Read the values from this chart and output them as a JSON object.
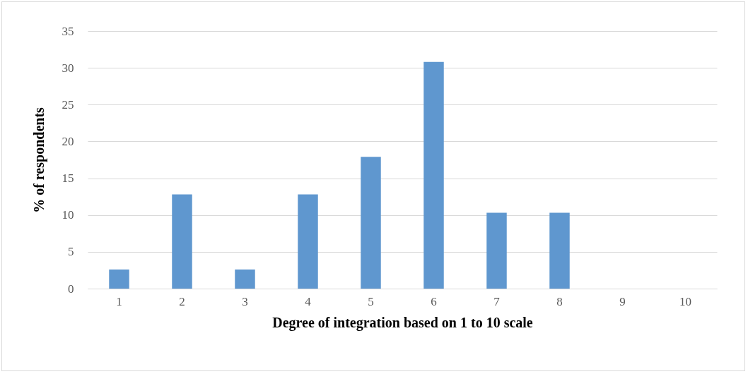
{
  "chart_data": {
    "type": "bar",
    "xlabel": "Degree of integration based on 1 to 10 scale",
    "ylabel": "% of respondents",
    "categories": [
      "1",
      "2",
      "3",
      "4",
      "5",
      "6",
      "7",
      "8",
      "9",
      "10"
    ],
    "values": [
      2.6,
      12.8,
      2.6,
      12.8,
      17.9,
      30.8,
      10.3,
      10.3,
      0,
      0
    ],
    "color": "#5f97cf",
    "ylim": [
      0,
      35
    ],
    "yticks": [
      0,
      5,
      10,
      15,
      20,
      25,
      30,
      35
    ],
    "grid": "y"
  }
}
